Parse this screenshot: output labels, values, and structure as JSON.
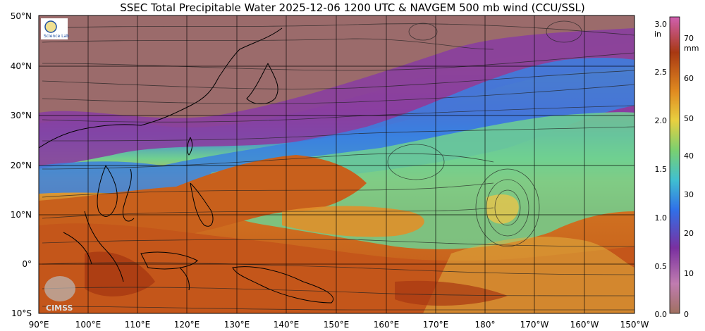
{
  "title": "SSEC Total Precipitable Water  2025-12-06 1200 UTC & NAVGEM 500 mb wind (CCU/SSL)",
  "lat_labels": [
    "50°N",
    "40°N",
    "30°N",
    "20°N",
    "10°N",
    "0°",
    "10°S"
  ],
  "lon_labels": [
    "90°E",
    "100°E",
    "110°E",
    "120°E",
    "130°E",
    "140°E",
    "150°E",
    "160°E",
    "170°E",
    "180°",
    "170°W",
    "160°W",
    "150°W"
  ],
  "colorbar": {
    "unit_left": "in",
    "unit_right": "mm",
    "inch_ticks": [
      "3.0",
      "2.5",
      "2.0",
      "1.5",
      "1.0",
      "0.5",
      "0.0"
    ],
    "mm_ticks": [
      "70",
      "60",
      "50",
      "40",
      "30",
      "20",
      "10",
      "0"
    ]
  },
  "watermark": "CIMSS",
  "logo_text": "Science Lab",
  "colors": {
    "dry": "#9b6b6b",
    "purple": "#8a3fa0",
    "blue": "#2f7fe0",
    "green": "#6ed08a",
    "yellow": "#e8c44a",
    "orange": "#d4781e",
    "red": "#a83812"
  }
}
